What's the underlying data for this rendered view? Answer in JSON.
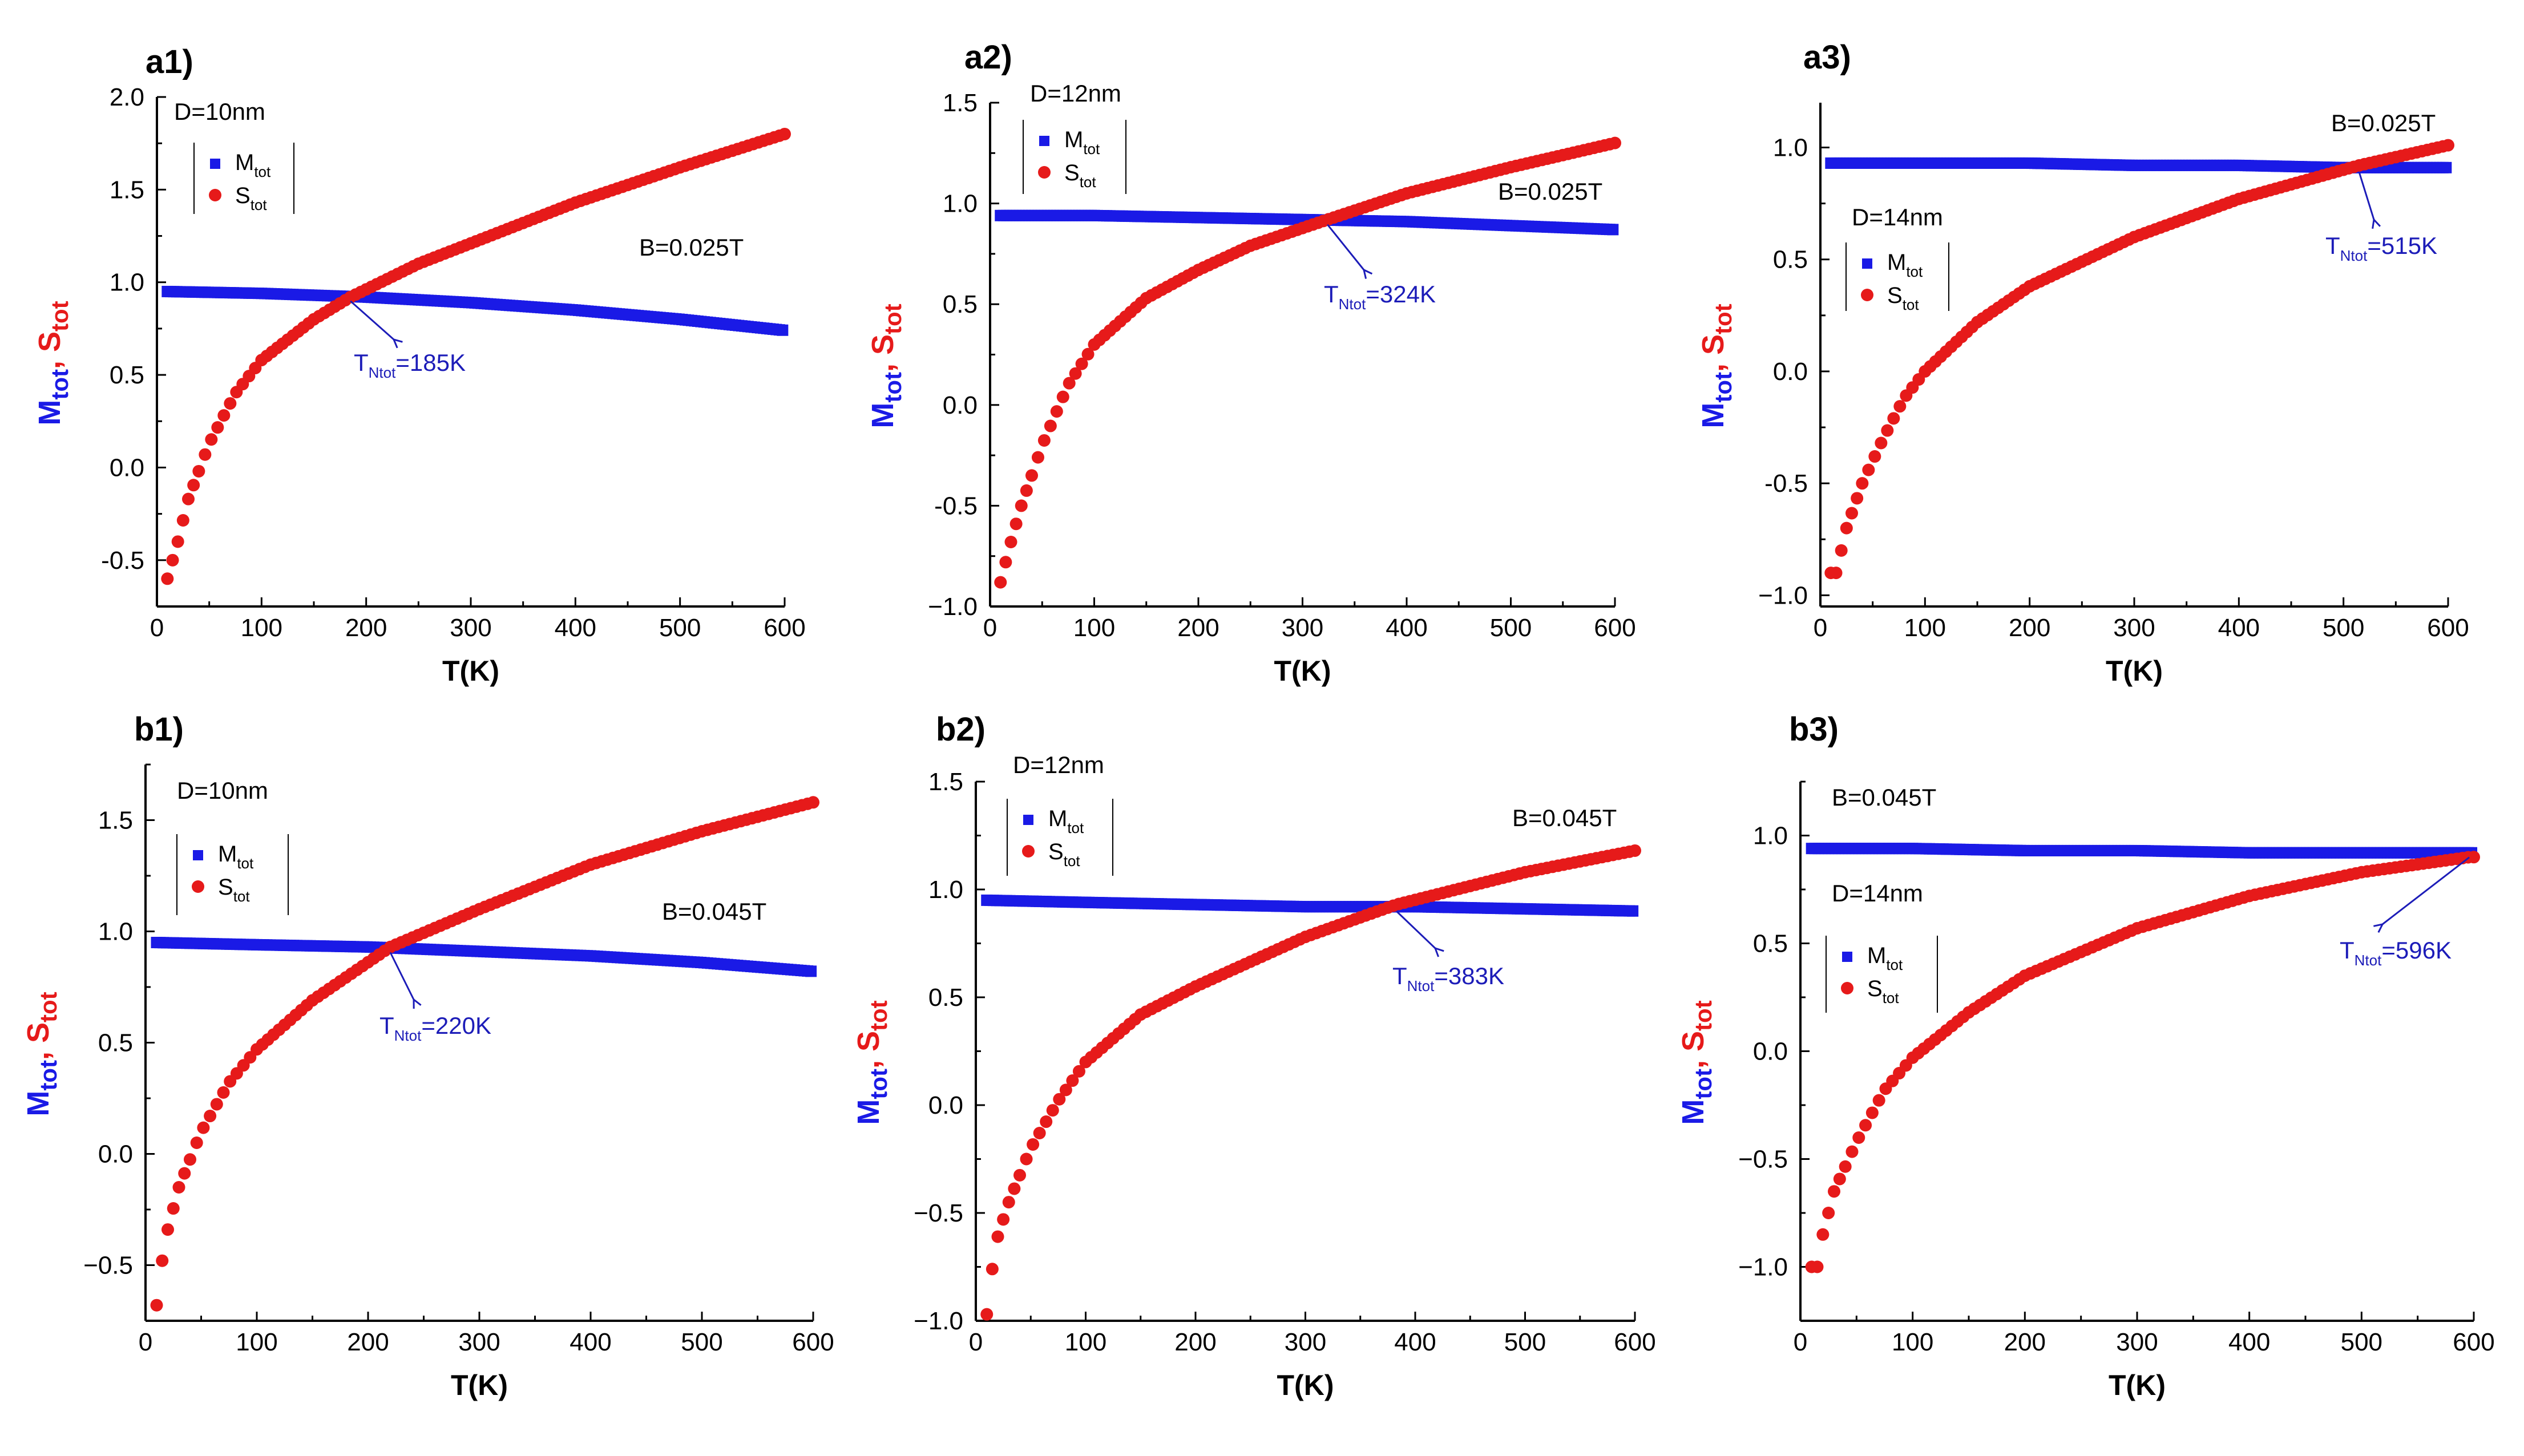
{
  "colors": {
    "M": "#1a1ae6",
    "S": "#e61a1a",
    "arrow": "#1c1cb8",
    "axis": "#000000"
  },
  "chart_data": [
    {
      "id": "a1",
      "type": "scatter",
      "title": "a1)",
      "xlabel": "T(K)",
      "ylabel_main": [
        "M",
        ", S"
      ],
      "ylabel_sub": [
        "tot",
        "tot"
      ],
      "xlim": [
        0,
        600
      ],
      "ylim": [
        -0.75,
        2.0
      ],
      "xticks": [
        0,
        100,
        200,
        300,
        400,
        500,
        600
      ],
      "yticks": [
        -0.5,
        0.0,
        0.5,
        1.0,
        1.5,
        2.0
      ],
      "ytick_labels": [
        "-0.5",
        "0.0",
        "0.5",
        "1.0",
        "1.5",
        "2.0"
      ],
      "size_label": "D=10nm",
      "field_label": "B=0.025T",
      "legend": [
        "M",
        "S"
      ],
      "legend_sub": "tot",
      "crossing": {
        "label": "T",
        "sub": "Ntot",
        "value": "=185K",
        "T": 185
      },
      "series": [
        {
          "name": "Mtot",
          "x": [
            10,
            100,
            200,
            300,
            400,
            500,
            600
          ],
          "y": [
            0.95,
            0.94,
            0.92,
            0.89,
            0.85,
            0.8,
            0.74
          ]
        },
        {
          "name": "Stot",
          "x": [
            10,
            20,
            30,
            50,
            75,
            100,
            150,
            185,
            250,
            300,
            400,
            500,
            600
          ],
          "y": [
            -0.6,
            -0.4,
            -0.17,
            0.13,
            0.4,
            0.58,
            0.8,
            0.92,
            1.1,
            1.21,
            1.43,
            1.62,
            1.8
          ]
        }
      ]
    },
    {
      "id": "a2",
      "type": "scatter",
      "title": "a2)",
      "xlabel": "T(K)",
      "ylabel_main": [
        "M",
        ", S"
      ],
      "ylabel_sub": [
        "tot",
        "tot"
      ],
      "xlim": [
        0,
        600
      ],
      "ylim": [
        -1.0,
        1.5
      ],
      "xticks": [
        0,
        100,
        200,
        300,
        400,
        500,
        600
      ],
      "yticks": [
        -1.0,
        -0.5,
        0.0,
        0.5,
        1.0,
        1.5
      ],
      "ytick_labels": [
        "−1.0",
        "-0.5",
        "0.0",
        "0.5",
        "1.0",
        "1.5"
      ],
      "size_label": "D=12nm",
      "field_label": "B=0.025T",
      "legend": [
        "M",
        "S"
      ],
      "legend_sub": "tot",
      "crossing": {
        "label": "T",
        "sub": "Ntot",
        "value": "=324K",
        "T": 324
      },
      "series": [
        {
          "name": "Mtot",
          "x": [
            10,
            100,
            200,
            300,
            400,
            500,
            600
          ],
          "y": [
            0.94,
            0.94,
            0.93,
            0.92,
            0.91,
            0.89,
            0.87
          ]
        },
        {
          "name": "Stot",
          "x": [
            10,
            20,
            30,
            50,
            75,
            100,
            150,
            200,
            250,
            324,
            400,
            500,
            600
          ],
          "y": [
            -0.88,
            -0.68,
            -0.5,
            -0.2,
            0.1,
            0.3,
            0.53,
            0.67,
            0.79,
            0.92,
            1.05,
            1.18,
            1.3
          ]
        }
      ]
    },
    {
      "id": "a3",
      "type": "scatter",
      "title": "a3)",
      "xlabel": "T(K)",
      "ylabel_main": [
        "M",
        ", S"
      ],
      "ylabel_sub": [
        "tot",
        "tot"
      ],
      "xlim": [
        0,
        600
      ],
      "ylim": [
        -1.05,
        1.2
      ],
      "xticks": [
        0,
        100,
        200,
        300,
        400,
        500,
        600
      ],
      "yticks": [
        -1.0,
        -0.5,
        0.0,
        0.5,
        1.0
      ],
      "ytick_labels": [
        "−1.0",
        "-0.5",
        "0.0",
        "0.5",
        "1.0"
      ],
      "size_label": "D=14nm",
      "field_label": "B=0.025T",
      "legend": [
        "M",
        "S"
      ],
      "legend_sub": "tot",
      "crossing": {
        "label": "T",
        "sub": "Ntot",
        "value": "=515K",
        "T": 515
      },
      "series": [
        {
          "name": "Mtot",
          "x": [
            10,
            100,
            200,
            300,
            400,
            500,
            600
          ],
          "y": [
            0.93,
            0.93,
            0.93,
            0.92,
            0.92,
            0.91,
            0.91
          ]
        },
        {
          "name": "Stot",
          "x": [
            10,
            15,
            25,
            40,
            60,
            80,
            100,
            150,
            200,
            300,
            400,
            515,
            600
          ],
          "y": [
            -0.9,
            -0.9,
            -0.7,
            -0.5,
            -0.3,
            -0.12,
            0.0,
            0.22,
            0.38,
            0.6,
            0.77,
            0.92,
            1.01
          ]
        }
      ]
    },
    {
      "id": "b1",
      "type": "scatter",
      "title": "b1)",
      "xlabel": "T(K)",
      "ylabel_main": [
        "M",
        ", S"
      ],
      "ylabel_sub": [
        "tot",
        "tot"
      ],
      "xlim": [
        0,
        600
      ],
      "ylim": [
        -0.75,
        1.75
      ],
      "xticks": [
        0,
        100,
        200,
        300,
        400,
        500,
        600
      ],
      "yticks": [
        -0.5,
        0.0,
        0.5,
        1.0,
        1.5
      ],
      "ytick_labels": [
        "−0.5",
        "0.0",
        "0.5",
        "1.0",
        "1.5"
      ],
      "size_label": "D=10nm",
      "field_label": "B=0.045T",
      "legend": [
        "M",
        "S"
      ],
      "legend_sub": "tot",
      "crossing": {
        "label": "T",
        "sub": "Ntot",
        "value": "=220K",
        "T": 220
      },
      "series": [
        {
          "name": "Mtot",
          "x": [
            10,
            100,
            200,
            300,
            400,
            500,
            600
          ],
          "y": [
            0.95,
            0.94,
            0.93,
            0.91,
            0.89,
            0.86,
            0.82
          ]
        },
        {
          "name": "Stot",
          "x": [
            10,
            15,
            20,
            30,
            50,
            75,
            100,
            150,
            220,
            300,
            400,
            500,
            600
          ],
          "y": [
            -0.68,
            -0.48,
            -0.34,
            -0.15,
            0.1,
            0.32,
            0.47,
            0.69,
            0.93,
            1.1,
            1.3,
            1.45,
            1.58
          ]
        }
      ]
    },
    {
      "id": "b2",
      "type": "scatter",
      "title": "b2)",
      "xlabel": "T(K)",
      "ylabel_main": [
        "M",
        ", S"
      ],
      "ylabel_sub": [
        "tot",
        "tot"
      ],
      "xlim": [
        0,
        600
      ],
      "ylim": [
        -1.0,
        1.5
      ],
      "xticks": [
        0,
        100,
        200,
        300,
        400,
        500,
        600
      ],
      "yticks": [
        -1.0,
        -0.5,
        0.0,
        0.5,
        1.0,
        1.5
      ],
      "ytick_labels": [
        "−1.0",
        "−0.5",
        "0.0",
        "0.5",
        "1.0",
        "1.5"
      ],
      "size_label": "D=12nm",
      "field_label": "B=0.045T",
      "legend": [
        "M",
        "S"
      ],
      "legend_sub": "tot",
      "crossing": {
        "label": "T",
        "sub": "Ntot",
        "value": "=383K",
        "T": 383
      },
      "series": [
        {
          "name": "Mtot",
          "x": [
            10,
            100,
            200,
            300,
            400,
            500,
            600
          ],
          "y": [
            0.95,
            0.94,
            0.93,
            0.92,
            0.92,
            0.91,
            0.9
          ]
        },
        {
          "name": "Stot",
          "x": [
            10,
            15,
            20,
            30,
            50,
            75,
            100,
            150,
            200,
            300,
            383,
            500,
            600
          ],
          "y": [
            -0.97,
            -0.76,
            -0.61,
            -0.45,
            -0.2,
            0.02,
            0.2,
            0.42,
            0.55,
            0.78,
            0.93,
            1.08,
            1.18
          ]
        }
      ]
    },
    {
      "id": "b3",
      "type": "scatter",
      "title": "b3)",
      "xlabel": "T(K)",
      "ylabel_main": [
        "M",
        ", S"
      ],
      "ylabel_sub": [
        "tot",
        "tot"
      ],
      "xlim": [
        0,
        600
      ],
      "ylim": [
        -1.25,
        1.25
      ],
      "xticks": [
        0,
        100,
        200,
        300,
        400,
        500,
        600
      ],
      "yticks": [
        -1.0,
        -0.5,
        0.0,
        0.5,
        1.0
      ],
      "ytick_labels": [
        "−1.0",
        "−0.5",
        "0.0",
        "0.5",
        "1.0"
      ],
      "size_label": "D=14nm",
      "field_label": "B=0.045T",
      "legend": [
        "M",
        "S"
      ],
      "legend_sub": "tot",
      "crossing": {
        "label": "T",
        "sub": "Ntot",
        "value": "=596K",
        "T": 596
      },
      "series": [
        {
          "name": "Mtot",
          "x": [
            10,
            100,
            200,
            300,
            400,
            500,
            600
          ],
          "y": [
            0.94,
            0.94,
            0.93,
            0.93,
            0.92,
            0.92,
            0.92
          ]
        },
        {
          "name": "Stot",
          "x": [
            10,
            15,
            20,
            30,
            50,
            75,
            100,
            150,
            200,
            300,
            400,
            500,
            596
          ],
          "y": [
            -1.0,
            -1.0,
            -0.85,
            -0.65,
            -0.42,
            -0.18,
            -0.03,
            0.18,
            0.35,
            0.57,
            0.72,
            0.83,
            0.9
          ]
        }
      ]
    }
  ]
}
